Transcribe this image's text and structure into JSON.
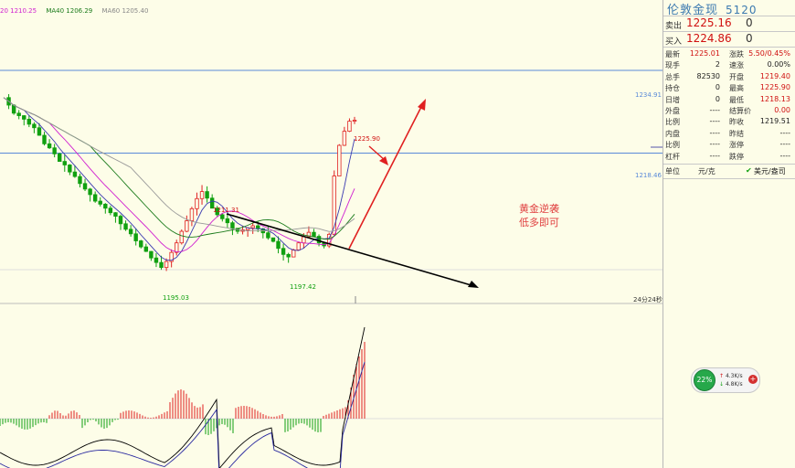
{
  "ma_legend": [
    {
      "label": "20 1210.25",
      "color": "#d020d0"
    },
    {
      "label": "MA40 1206.29",
      "color": "#1a7a1a"
    },
    {
      "label": "MA60 1205.40",
      "color": "#888888"
    }
  ],
  "price_axis_labels": [
    "1234.91",
    "1218.46"
  ],
  "annotations": {
    "high_right": "1225.90",
    "high_left": "1211.31",
    "low_left": "1195.03",
    "low_right": "1197.42",
    "time_label": "24分24秒"
  },
  "commentary": [
    "黄金逆袭",
    "低多即可"
  ],
  "quote": {
    "title": "伦敦金现",
    "code": "5120",
    "sell_label": "卖出",
    "sell_price": "1225.16",
    "sell_vol": "0",
    "buy_label": "买入",
    "buy_price": "1224.86",
    "buy_vol": "0",
    "rows": [
      {
        "l": "最新",
        "v": "1225.01",
        "vc": "red",
        "l2": "涨跌",
        "v2": "5.50/0.45%",
        "v2c": "red"
      },
      {
        "l": "现手",
        "v": "2",
        "vc": "blk",
        "l2": "速涨",
        "v2": "0.00%",
        "v2c": "blk"
      },
      {
        "l": "总手",
        "v": "82530",
        "vc": "blk",
        "l2": "开盘",
        "v2": "1219.40",
        "v2c": "red"
      },
      {
        "l": "持仓",
        "v": "0",
        "vc": "blk",
        "l2": "最高",
        "v2": "1225.90",
        "v2c": "red"
      },
      {
        "l": "日增",
        "v": "0",
        "vc": "blk",
        "l2": "最低",
        "v2": "1218.13",
        "v2c": "red"
      },
      {
        "l": "外盘",
        "v": "----",
        "vc": "blk",
        "l2": "结算价",
        "v2": "0.00",
        "v2c": "red"
      },
      {
        "l": "比例",
        "v": "----",
        "vc": "blk",
        "l2": "昨收",
        "v2": "1219.51",
        "v2c": "blk"
      },
      {
        "l": "内盘",
        "v": "----",
        "vc": "blk",
        "l2": "昨结",
        "v2": "----",
        "v2c": "blk"
      },
      {
        "l": "比例",
        "v": "----",
        "vc": "blk",
        "l2": "涨停",
        "v2": "----",
        "v2c": "blk"
      },
      {
        "l": "杠杆",
        "v": "----",
        "vc": "blk",
        "l2": "跌停",
        "v2": "----",
        "v2c": "blk"
      }
    ],
    "unit_label": "单位",
    "unit_value": "元/克",
    "currency": "美元/盎司"
  },
  "widget": {
    "percent": "22%",
    "up_rate": "4.3K/s",
    "down_rate": "4.8K/s"
  },
  "colors": {
    "background": "#fdfde8",
    "up_candle": "#e02020",
    "down_candle": "#10a010",
    "level_line": "#5a8ad8"
  },
  "chart_data": {
    "type": "candlestick",
    "ylim": [
      1190,
      1238
    ],
    "levels": [
      1234.91,
      1218.46
    ],
    "highs_labeled": [
      1211.31,
      1225.9
    ],
    "lows_labeled": [
      1195.03,
      1197.42
    ],
    "close_path": [
      1229.5,
      1228.0,
      1226.4,
      1225.9,
      1225.2,
      1224.2,
      1223.5,
      1222.0,
      1220.3,
      1219.5,
      1218.3,
      1216.8,
      1216.1,
      1214.7,
      1213.8,
      1212.4,
      1211.3,
      1210.2,
      1208.9,
      1208.3,
      1207.5,
      1206.6,
      1205.9,
      1204.4,
      1203.3,
      1202.4,
      1201.0,
      1199.8,
      1198.9,
      1197.6,
      1196.7,
      1195.7,
      1196.9,
      1198.7,
      1200.6,
      1202.9,
      1205.0,
      1207.4,
      1209.4,
      1210.8,
      1209.5,
      1207.5,
      1206.2,
      1205.4,
      1204.6,
      1203.5,
      1202.9,
      1203.2,
      1203.6,
      1204.0,
      1203.4,
      1202.6,
      1201.6,
      1200.9,
      1199.5,
      1198.3,
      1197.8,
      1199.2,
      1200.6,
      1201.8,
      1202.7,
      1201.9,
      1200.6,
      1200.0,
      1202.3,
      1213.9,
      1220.0,
      1222.8,
      1224.8,
      1225.0
    ]
  }
}
